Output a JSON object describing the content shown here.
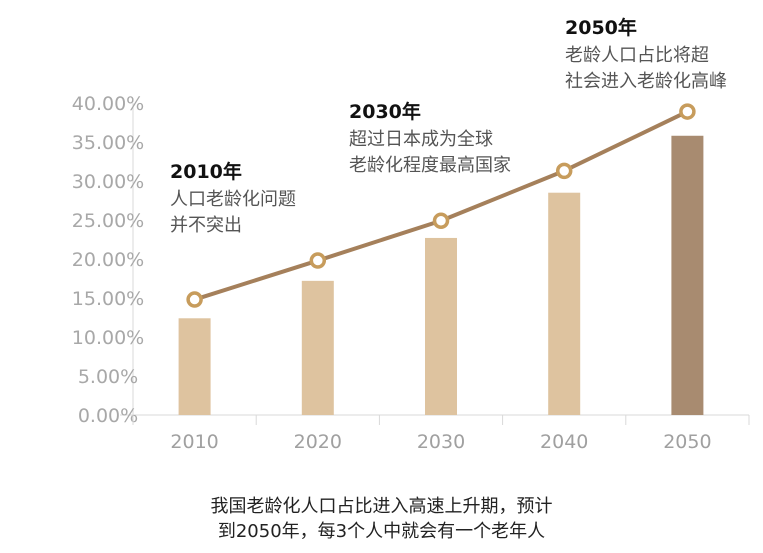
{
  "chart_data": {
    "type": "bar",
    "categories": [
      "2010",
      "2020",
      "2030",
      "2040",
      "2050"
    ],
    "y_tick_labels": [
      "0.00%",
      "5.00%",
      "10.00%",
      "15.00%",
      "20.00%",
      "25.00%",
      "30.00%",
      "35.00%",
      "40.00%"
    ],
    "ylim": [
      0,
      40
    ],
    "grid": false,
    "series": [
      {
        "type": "bar",
        "values": [
          12.4,
          17.2,
          22.7,
          28.5,
          35.8
        ]
      },
      {
        "type": "line",
        "values": [
          14.8,
          19.8,
          24.9,
          31.3,
          38.9
        ]
      }
    ],
    "annotations": [
      {
        "category": "2010",
        "title": "2010年",
        "lines": [
          "人口老龄化问题",
          "并不突出"
        ]
      },
      {
        "category": "2030",
        "title": "2030年",
        "lines": [
          "超过日本成为全球",
          "老龄化程度最高国家"
        ]
      },
      {
        "category": "2050",
        "title": "2050年",
        "lines": [
          "老龄人口占比将超",
          "社会进入老龄化高峰"
        ]
      }
    ]
  },
  "caption": {
    "line1": "我国老龄化人口占比进入高速上升期，预计",
    "line2": "到2050年，每3个人中就会有一个老年人"
  },
  "colors": {
    "bar": "#dec39f",
    "bar_highlight": "#a88b70",
    "line": "#a5805b",
    "marker_stroke": "#c79c5c",
    "axis": "#d9d9d9"
  }
}
